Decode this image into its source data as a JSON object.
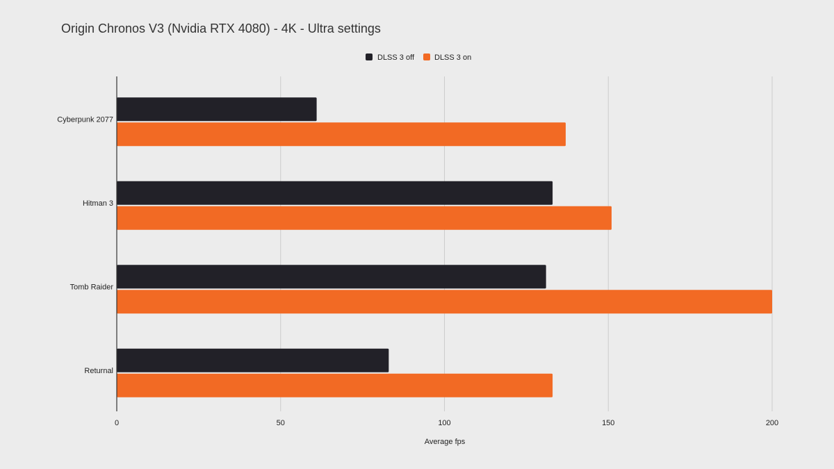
{
  "chart_data": {
    "type": "bar",
    "orientation": "horizontal",
    "title": "Origin Chronos V3 (Nvidia RTX 4080) - 4K - Ultra settings",
    "xlabel": "Average fps",
    "ylabel": "",
    "categories": [
      "Cyberpunk 2077",
      "Hitman 3",
      "Tomb Raider",
      "Returnal"
    ],
    "series": [
      {
        "name": "DLSS 3 off",
        "color": "#222128",
        "values": [
          61,
          133,
          131,
          83
        ]
      },
      {
        "name": "DLSS 3 on",
        "color": "#f26a24",
        "values": [
          137,
          151,
          200,
          133
        ]
      }
    ],
    "xlim": [
      0,
      200
    ],
    "xticks": [
      "0",
      "50",
      "100",
      "150",
      "200"
    ],
    "grid": true,
    "legend_position": "top-center",
    "colors": {
      "background": "#ececec",
      "grid": "#cccccc",
      "axis": "#333333"
    }
  }
}
